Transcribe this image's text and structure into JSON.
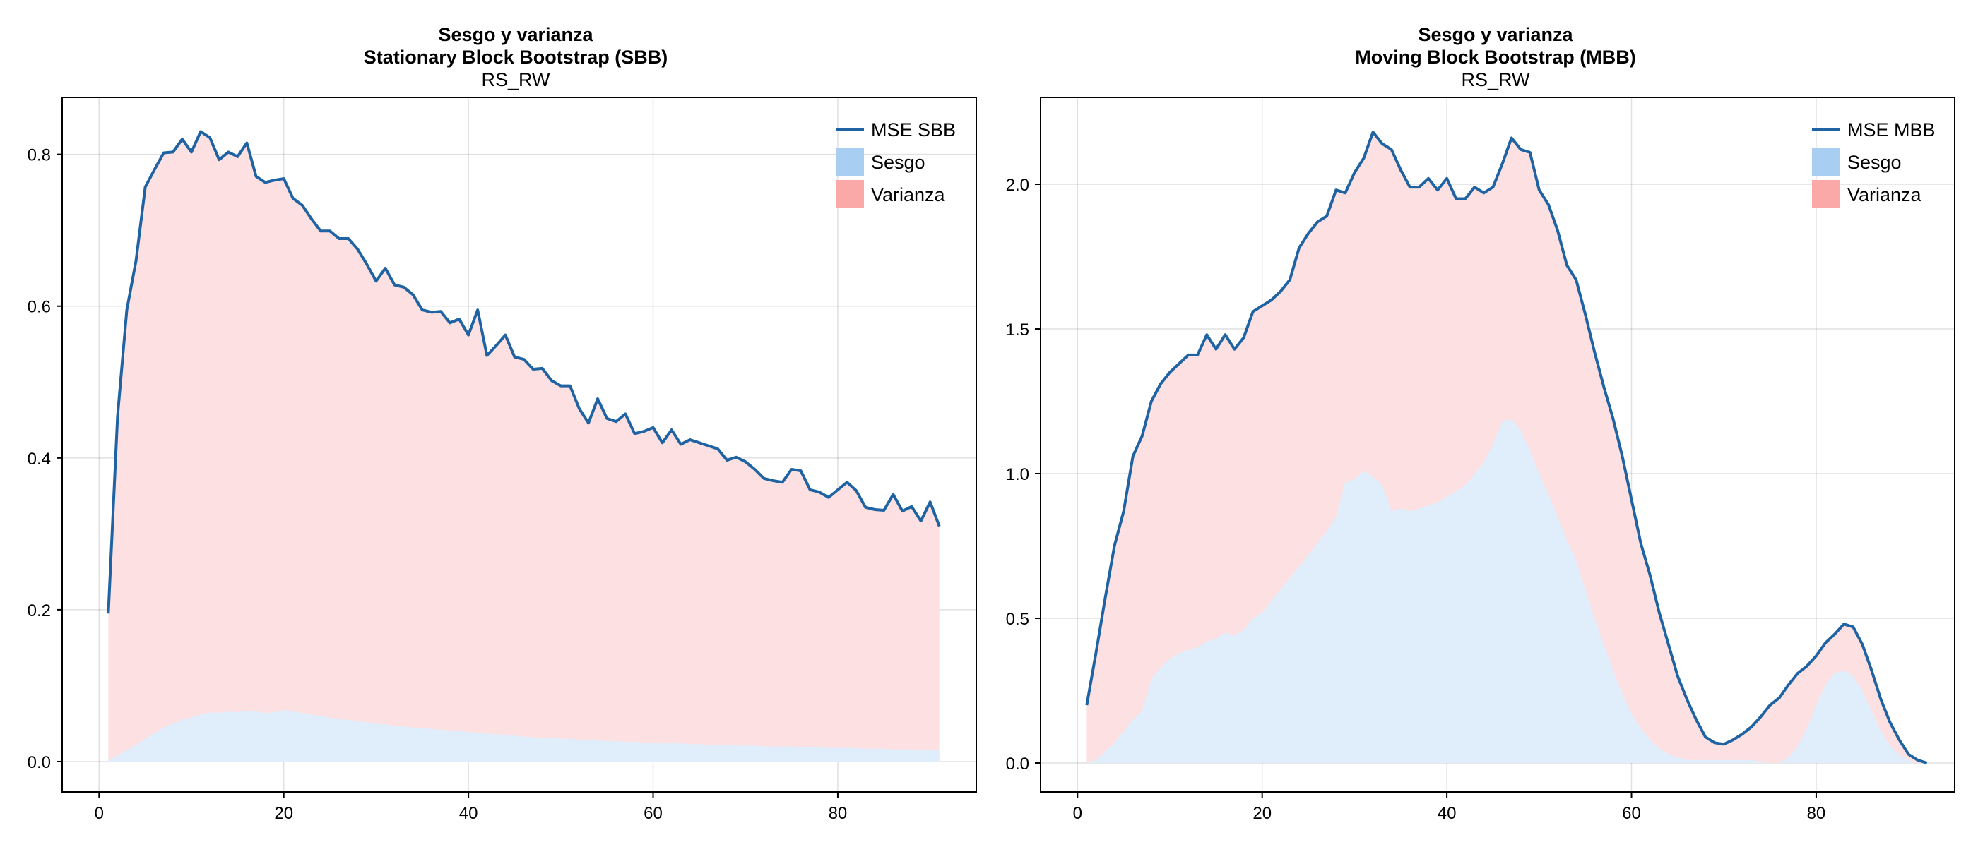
{
  "colors": {
    "mse_line": "#1f63a3",
    "sesgo_fill": "#e0edfb",
    "varianza_fill": "#fde0e2",
    "sesgo_legend": "#a8cef2",
    "varianza_legend": "#fba8a8"
  },
  "chart_data": [
    {
      "type": "area",
      "title_lines": [
        "Sesgo y varianza",
        "Stationary Block Bootstrap (SBB)"
      ],
      "subtitle": "RS_RW",
      "xlim": [
        -4,
        95
      ],
      "ylim": [
        -0.04,
        0.875
      ],
      "xticks": [
        0,
        20,
        40,
        60,
        80
      ],
      "yticks": [
        0.0,
        0.2,
        0.4,
        0.6,
        0.8
      ],
      "ytick_labels": [
        "0.0",
        "0.2",
        "0.4",
        "0.6",
        "0.8"
      ],
      "grid": true,
      "legend_position": "top-right",
      "legend": [
        "MSE SBB",
        "Sesgo",
        "Varianza"
      ],
      "x_start": 1,
      "mse": [
        0.195,
        0.455,
        0.595,
        0.66,
        0.757,
        0.78,
        0.802,
        0.803,
        0.82,
        0.803,
        0.83,
        0.822,
        0.793,
        0.803,
        0.797,
        0.815,
        0.771,
        0.763,
        0.766,
        0.768,
        0.742,
        0.733,
        0.715,
        0.699,
        0.699,
        0.689,
        0.689,
        0.675,
        0.655,
        0.633,
        0.65,
        0.628,
        0.625,
        0.615,
        0.595,
        0.592,
        0.593,
        0.578,
        0.583,
        0.562,
        0.595,
        0.535,
        0.548,
        0.562,
        0.533,
        0.53,
        0.517,
        0.518,
        0.502,
        0.495,
        0.495,
        0.465,
        0.446,
        0.478,
        0.452,
        0.448,
        0.458,
        0.432,
        0.435,
        0.44,
        0.42,
        0.437,
        0.418,
        0.424,
        0.42,
        0.416,
        0.412,
        0.397,
        0.401,
        0.395,
        0.385,
        0.373,
        0.37,
        0.368,
        0.385,
        0.383,
        0.358,
        0.355,
        0.348,
        0.358,
        0.368,
        0.357,
        0.335,
        0.332,
        0.331,
        0.352,
        0.33,
        0.336,
        0.317,
        0.342,
        0.31
      ],
      "sesgo": [
        0.002,
        0.008,
        0.015,
        0.022,
        0.03,
        0.038,
        0.045,
        0.05,
        0.055,
        0.058,
        0.062,
        0.065,
        0.064,
        0.066,
        0.065,
        0.067,
        0.066,
        0.064,
        0.065,
        0.068,
        0.066,
        0.064,
        0.062,
        0.06,
        0.058,
        0.056,
        0.055,
        0.053,
        0.052,
        0.05,
        0.049,
        0.047,
        0.046,
        0.045,
        0.044,
        0.043,
        0.042,
        0.041,
        0.04,
        0.039,
        0.038,
        0.037,
        0.036,
        0.035,
        0.034,
        0.033,
        0.032,
        0.031,
        0.031,
        0.03,
        0.03,
        0.029,
        0.028,
        0.028,
        0.027,
        0.027,
        0.026,
        0.026,
        0.025,
        0.025,
        0.024,
        0.024,
        0.024,
        0.023,
        0.023,
        0.022,
        0.022,
        0.022,
        0.021,
        0.021,
        0.021,
        0.02,
        0.02,
        0.02,
        0.02,
        0.019,
        0.019,
        0.019,
        0.018,
        0.018,
        0.018,
        0.018,
        0.017,
        0.017,
        0.017,
        0.016,
        0.016,
        0.016,
        0.016,
        0.015,
        0.015
      ]
    },
    {
      "type": "area",
      "title_lines": [
        "Sesgo y varianza",
        "Moving Block Bootstrap (MBB)"
      ],
      "subtitle": "RS_RW",
      "xlim": [
        -4,
        95
      ],
      "ylim": [
        -0.1,
        2.3
      ],
      "xticks": [
        0,
        20,
        40,
        60,
        80
      ],
      "yticks": [
        0.0,
        0.5,
        1.0,
        1.5,
        2.0
      ],
      "ytick_labels": [
        "0.0",
        "0.5",
        "1.0",
        "1.5",
        "2.0"
      ],
      "grid": true,
      "legend_position": "top-right",
      "legend": [
        "MSE MBB",
        "Sesgo",
        "Varianza"
      ],
      "x_start": 1,
      "mse": [
        0.2,
        0.38,
        0.57,
        0.75,
        0.87,
        1.06,
        1.13,
        1.25,
        1.31,
        1.35,
        1.38,
        1.41,
        1.41,
        1.48,
        1.43,
        1.48,
        1.43,
        1.47,
        1.56,
        1.58,
        1.6,
        1.63,
        1.67,
        1.78,
        1.83,
        1.87,
        1.89,
        1.98,
        1.97,
        2.04,
        2.09,
        2.18,
        2.14,
        2.12,
        2.05,
        1.99,
        1.99,
        2.02,
        1.98,
        2.02,
        1.95,
        1.95,
        1.99,
        1.97,
        1.99,
        2.07,
        2.16,
        2.12,
        2.11,
        1.98,
        1.93,
        1.84,
        1.72,
        1.67,
        1.55,
        1.42,
        1.3,
        1.19,
        1.06,
        0.91,
        0.76,
        0.65,
        0.52,
        0.41,
        0.3,
        0.22,
        0.15,
        0.09,
        0.07,
        0.065,
        0.08,
        0.1,
        0.125,
        0.16,
        0.2,
        0.225,
        0.27,
        0.31,
        0.335,
        0.37,
        0.415,
        0.445,
        0.48,
        0.47,
        0.41,
        0.32,
        0.22,
        0.14,
        0.08,
        0.03,
        0.01,
        0.0
      ],
      "sesgo": [
        0.0,
        0.01,
        0.04,
        0.07,
        0.11,
        0.15,
        0.18,
        0.29,
        0.33,
        0.36,
        0.38,
        0.39,
        0.4,
        0.42,
        0.43,
        0.45,
        0.44,
        0.46,
        0.5,
        0.52,
        0.56,
        0.6,
        0.64,
        0.68,
        0.72,
        0.76,
        0.8,
        0.85,
        0.97,
        0.98,
        1.01,
        0.99,
        0.96,
        0.87,
        0.88,
        0.87,
        0.88,
        0.89,
        0.9,
        0.92,
        0.94,
        0.96,
        1.0,
        1.04,
        1.1,
        1.18,
        1.19,
        1.15,
        1.08,
        1.0,
        0.93,
        0.85,
        0.77,
        0.7,
        0.6,
        0.5,
        0.41,
        0.32,
        0.24,
        0.17,
        0.12,
        0.08,
        0.05,
        0.03,
        0.02,
        0.01,
        0.01,
        0.01,
        0.01,
        0.01,
        0.01,
        0.01,
        0.01,
        0.005,
        0.0,
        0.0,
        0.02,
        0.06,
        0.12,
        0.2,
        0.27,
        0.31,
        0.32,
        0.3,
        0.25,
        0.18,
        0.11,
        0.06,
        0.03,
        0.01,
        0.0,
        0.0
      ]
    }
  ]
}
